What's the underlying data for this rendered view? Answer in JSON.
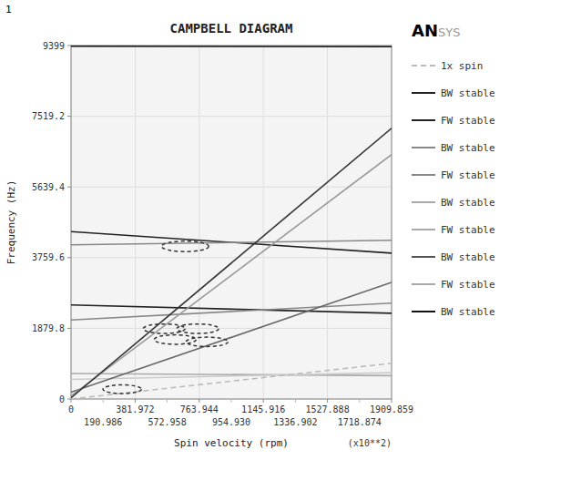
{
  "chart_data": {
    "type": "line",
    "title": "CAMPBELL DIAGRAM",
    "x_label": "Spin velocity (rpm)",
    "y_label": "Frequency (Hz)",
    "xlim": [
      0,
      1909.859
    ],
    "ylim": [
      0,
      9399
    ],
    "xticks": [
      0,
      381.972,
      763.944,
      1145.916,
      1527.888,
      1909.859
    ],
    "xticks_second_row": [
      190.986,
      572.958,
      {
        "value": 954.93,
        "label": "954.930"
      },
      1336.902,
      1718.874
    ],
    "yticks": [
      0,
      1879.8,
      3759.6,
      5639.4,
      7519.2,
      9399
    ],
    "grid": true,
    "series": [
      {
        "x": [
          0,
          1909.859
        ],
        "values": [
          9380,
          9370
        ],
        "color": "#111111",
        "line_style": "solid"
      },
      {
        "x": [
          0,
          1909.859
        ],
        "values": [
          4450,
          3880
        ],
        "color": "#222222",
        "line_style": "solid"
      },
      {
        "x": [
          0,
          1909.859
        ],
        "values": [
          4100,
          4220
        ],
        "color": "#888888",
        "line_style": "solid"
      },
      {
        "x": [
          0,
          1909.859
        ],
        "values": [
          2500,
          2280
        ],
        "color": "#222222",
        "line_style": "solid"
      },
      {
        "x": [
          0,
          1909.859
        ],
        "values": [
          2100,
          2550
        ],
        "color": "#888888",
        "line_style": "solid"
      },
      {
        "x": [
          0,
          1909.859
        ],
        "values": [
          680,
          620
        ],
        "color": "#aaaaaa",
        "line_style": "solid"
      },
      {
        "x": [
          0,
          1909.859
        ],
        "values": [
          520,
          700
        ],
        "color": "#cccccc",
        "line_style": "solid"
      },
      {
        "x": [
          0,
          1909.859
        ],
        "values": [
          180,
          3100
        ],
        "color": "#666666",
        "line_style": "solid"
      },
      {
        "x": [
          0,
          1909.859
        ],
        "values": [
          80,
          6500
        ],
        "color": "#999999",
        "line_style": "solid"
      },
      {
        "x": [
          0,
          1909.859
        ],
        "values": [
          30,
          7200
        ],
        "color": "#333333",
        "line_style": "solid"
      },
      {
        "x": [
          0,
          1909.859
        ],
        "values": [
          0,
          950
        ],
        "color": "#bbbbbb",
        "line_style": "dashed"
      }
    ],
    "circles": [
      {
        "x": 305,
        "y": 260,
        "r": 115
      },
      {
        "x": 555,
        "y": 1870,
        "r": 125
      },
      {
        "x": 620,
        "y": 1580,
        "r": 125
      },
      {
        "x": 755,
        "y": 1870,
        "r": 125
      },
      {
        "x": 810,
        "y": 1520,
        "r": 125
      },
      {
        "x": 680,
        "y": 4060,
        "r": 140
      }
    ],
    "legend_items": [
      {
        "label": "1x spin",
        "color": "#bbbbbb",
        "line_style": "dashed"
      },
      {
        "label": "BW stable",
        "color": "#222222",
        "line_style": "solid"
      },
      {
        "label": "FW stable",
        "color": "#222222",
        "line_style": "solid"
      },
      {
        "label": "BW stable",
        "color": "#888888",
        "line_style": "solid"
      },
      {
        "label": "FW stable",
        "color": "#888888",
        "line_style": "solid"
      },
      {
        "label": "BW stable",
        "color": "#aaaaaa",
        "line_style": "solid"
      },
      {
        "label": "FW stable",
        "color": "#aaaaaa",
        "line_style": "solid"
      },
      {
        "label": "BW stable",
        "color": "#555555",
        "line_style": "solid"
      },
      {
        "label": "FW stable",
        "color": "#aaaaaa",
        "line_style": "solid"
      },
      {
        "label": "BW stable",
        "color": "#111111",
        "line_style": "solid"
      }
    ],
    "annotations": {
      "axis_multiplier": "(x10**2)",
      "page_number": "1",
      "logo": [
        "AN",
        "SYS"
      ]
    }
  }
}
